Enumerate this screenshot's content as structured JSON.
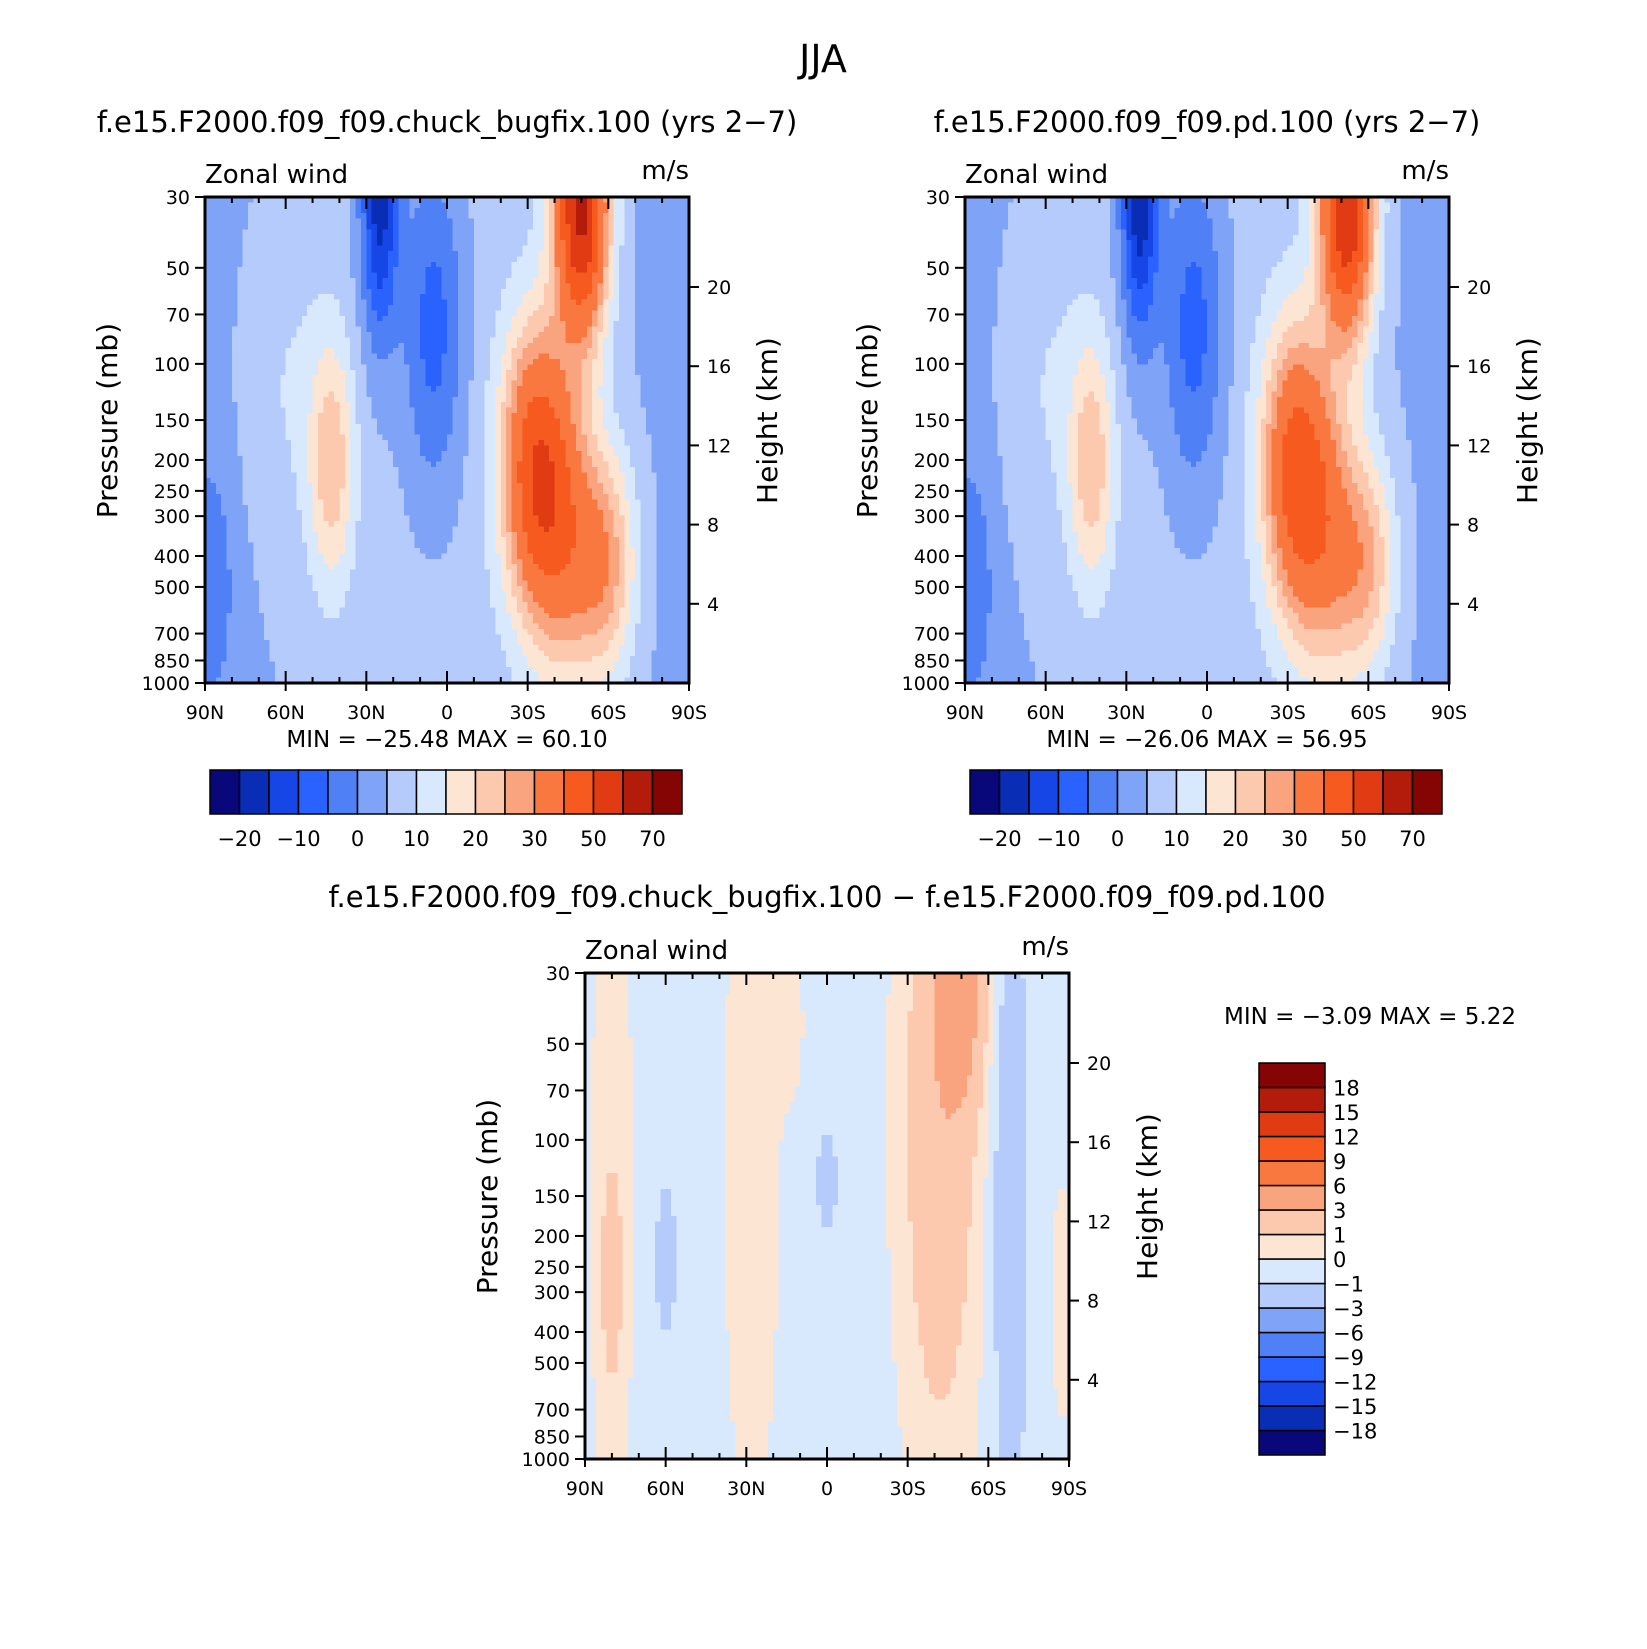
{
  "figure": {
    "season": "JJA"
  },
  "chart_data": [
    {
      "type": "heatmap",
      "title": "f.e15.F2000.f09_f09.chuck_bugfix.100 (yrs 2-7)",
      "left_label": "Zonal wind",
      "right_label": "m/s",
      "ylabel": "Pressure (mb)",
      "y2label": "Height (km)",
      "x_ticks": [
        "90N",
        "60N",
        "30N",
        "0",
        "30S",
        "60S",
        "90S"
      ],
      "y_ticks": [
        30,
        50,
        70,
        100,
        150,
        200,
        250,
        300,
        400,
        500,
        700,
        850,
        1000
      ],
      "y2_ticks": [
        4,
        8,
        12,
        16,
        20
      ],
      "xlim": [
        90,
        -90
      ],
      "ylim": [
        1000,
        30
      ],
      "y_scale": "log",
      "stats": {
        "min_label": "MIN =",
        "min": "-25.48",
        "max_label": "MAX =",
        "max": "60.10"
      },
      "colorbar": {
        "orientation": "horizontal",
        "levels": [
          -25,
          -20,
          -15,
          -10,
          -5,
          0,
          5,
          10,
          15,
          20,
          25,
          30,
          40,
          50,
          60,
          70,
          80
        ],
        "colors": [
          "#08087a",
          "#0a2db5",
          "#1646e6",
          "#2a62ff",
          "#4f80f5",
          "#7fa3f7",
          "#b4cbfb",
          "#d9e9fd",
          "#fde5d3",
          "#fcc8ae",
          "#f9a47f",
          "#f8783f",
          "#f75a1f",
          "#e03b12",
          "#b31c0a",
          "#850505"
        ],
        "tick_labels": [
          "-20",
          "-10",
          "0",
          "10",
          "20",
          "30",
          "50",
          "70"
        ],
        "tick_levels": [
          -20,
          -10,
          0,
          10,
          20,
          30,
          50,
          70
        ]
      },
      "features": [
        {
          "lat": 25,
          "z": 24.5,
          "value": -24,
          "sx": 5,
          "sz": 5
        },
        {
          "lat": 5,
          "z": 18,
          "value": -14,
          "sx": 8,
          "sz": 6
        },
        {
          "lat": -50,
          "z": 24,
          "value": 57,
          "sx": 7,
          "sz": 4.5
        },
        {
          "lat": -33,
          "z": 11,
          "value": 38,
          "sx": 9,
          "sz": 5
        },
        {
          "lat": -45,
          "z": 7,
          "value": 22,
          "sx": 10,
          "sz": 5
        },
        {
          "lat": -60,
          "z": 6,
          "value": 18,
          "sx": 8,
          "sz": 4
        },
        {
          "lat": 43,
          "z": 11,
          "value": 17,
          "sx": 6,
          "sz": 4.5
        },
        {
          "lat": 60,
          "z": 15,
          "value": 5,
          "sx": 12,
          "sz": 6
        },
        {
          "lat": 88,
          "z": 5,
          "value": -8,
          "sx": 6,
          "sz": 4
        }
      ]
    },
    {
      "type": "heatmap",
      "title": "f.e15.F2000.f09_f09.pd.100 (yrs 2-7)",
      "left_label": "Zonal wind",
      "right_label": "m/s",
      "ylabel": "Pressure (mb)",
      "y2label": "Height (km)",
      "x_ticks": [
        "90N",
        "60N",
        "30N",
        "0",
        "30S",
        "60S",
        "90S"
      ],
      "y_ticks": [
        30,
        50,
        70,
        100,
        150,
        200,
        250,
        300,
        400,
        500,
        700,
        850,
        1000
      ],
      "y2_ticks": [
        4,
        8,
        12,
        16,
        20
      ],
      "xlim": [
        90,
        -90
      ],
      "ylim": [
        1000,
        30
      ],
      "y_scale": "log",
      "stats": {
        "min_label": "MIN =",
        "min": "-26.06",
        "max_label": "MAX =",
        "max": "56.95"
      },
      "colorbar": {
        "orientation": "horizontal",
        "levels": [
          -25,
          -20,
          -15,
          -10,
          -5,
          0,
          5,
          10,
          15,
          20,
          25,
          30,
          40,
          50,
          60,
          70,
          80
        ],
        "colors": [
          "#08087a",
          "#0a2db5",
          "#1646e6",
          "#2a62ff",
          "#4f80f5",
          "#7fa3f7",
          "#b4cbfb",
          "#d9e9fd",
          "#fde5d3",
          "#fcc8ae",
          "#f9a47f",
          "#f8783f",
          "#f75a1f",
          "#e03b12",
          "#b31c0a",
          "#850505"
        ],
        "tick_labels": [
          "-20",
          "-10",
          "0",
          "10",
          "20",
          "30",
          "50",
          "70"
        ],
        "tick_levels": [
          -20,
          -10,
          0,
          10,
          20,
          30,
          50,
          70
        ]
      },
      "features": [
        {
          "lat": 25,
          "z": 24.5,
          "value": -25,
          "sx": 5,
          "sz": 5
        },
        {
          "lat": 5,
          "z": 18,
          "value": -14,
          "sx": 8,
          "sz": 6
        },
        {
          "lat": -52,
          "z": 24,
          "value": 54,
          "sx": 7,
          "sz": 4.5
        },
        {
          "lat": -33,
          "z": 11,
          "value": 35,
          "sx": 9,
          "sz": 5
        },
        {
          "lat": -45,
          "z": 7,
          "value": 20,
          "sx": 10,
          "sz": 5
        },
        {
          "lat": -60,
          "z": 6,
          "value": 16,
          "sx": 8,
          "sz": 4
        },
        {
          "lat": 43,
          "z": 11,
          "value": 17,
          "sx": 6,
          "sz": 4.5
        },
        {
          "lat": 60,
          "z": 15,
          "value": 5,
          "sx": 12,
          "sz": 6
        },
        {
          "lat": 88,
          "z": 5,
          "value": -8,
          "sx": 6,
          "sz": 4
        }
      ]
    },
    {
      "type": "heatmap",
      "title": "f.e15.F2000.f09_f09.chuck_bugfix.100 - f.e15.F2000.f09_f09.pd.100",
      "left_label": "Zonal wind",
      "right_label": "m/s",
      "ylabel": "Pressure (mb)",
      "y2label": "Height (km)",
      "x_ticks": [
        "90N",
        "60N",
        "30N",
        "0",
        "30S",
        "60S",
        "90S"
      ],
      "y_ticks": [
        30,
        50,
        70,
        100,
        150,
        200,
        250,
        300,
        400,
        500,
        700,
        850,
        1000
      ],
      "y2_ticks": [
        4,
        8,
        12,
        16,
        20
      ],
      "xlim": [
        90,
        -90
      ],
      "ylim": [
        1000,
        30
      ],
      "y_scale": "log",
      "stats": {
        "min_label": "MIN =",
        "min": "-3.09",
        "max_label": "MAX =",
        "max": "5.22"
      },
      "colorbar": {
        "orientation": "vertical",
        "levels": [
          -21,
          -18,
          -15,
          -12,
          -9,
          -6,
          -3,
          -1,
          0,
          1,
          3,
          6,
          9,
          12,
          15,
          18,
          21
        ],
        "colors": [
          "#08087a",
          "#0a2db5",
          "#1646e6",
          "#2a62ff",
          "#4f80f5",
          "#7fa3f7",
          "#b4cbfb",
          "#d9e9fd",
          "#fde5d3",
          "#fcc8ae",
          "#f9a47f",
          "#f8783f",
          "#f75a1f",
          "#e03b12",
          "#b31c0a",
          "#850505"
        ],
        "tick_labels": [
          "-18",
          "-15",
          "-12",
          "-9",
          "-6",
          "-3",
          "-1",
          "0",
          "1",
          "3",
          "6",
          "9",
          "12",
          "15",
          "18"
        ],
        "tick_levels": [
          -18,
          -15,
          -12,
          -9,
          -6,
          -3,
          -1,
          0,
          1,
          3,
          6,
          9,
          12,
          15,
          18
        ]
      },
      "base_value": -0.4,
      "features": [
        {
          "lat": 80,
          "z": 14,
          "value": 0.9,
          "sx": 6,
          "sz": 14
        },
        {
          "lat": 80,
          "z": 9,
          "value": 1.4,
          "sx": 3,
          "sz": 4
        },
        {
          "lat": 28,
          "z": 15,
          "value": 0.9,
          "sx": 8,
          "sz": 14
        },
        {
          "lat": -42,
          "z": 17,
          "value": 2.8,
          "sx": 10,
          "sz": 12
        },
        {
          "lat": -50,
          "z": 24,
          "value": 4.2,
          "sx": 6,
          "sz": 4
        },
        {
          "lat": -68,
          "z": 13,
          "value": -1.6,
          "sx": 5,
          "sz": 12
        },
        {
          "lat": 60,
          "z": 10,
          "value": -1.3,
          "sx": 3,
          "sz": 3
        },
        {
          "lat": 0,
          "z": 14,
          "value": -1.2,
          "sx": 3,
          "sz": 2
        },
        {
          "lat": -88,
          "z": 8,
          "value": 0.8,
          "sx": 4,
          "sz": 5
        },
        {
          "lat": 13,
          "z": 22,
          "value": 0.6,
          "sx": 4,
          "sz": 3
        }
      ]
    }
  ]
}
